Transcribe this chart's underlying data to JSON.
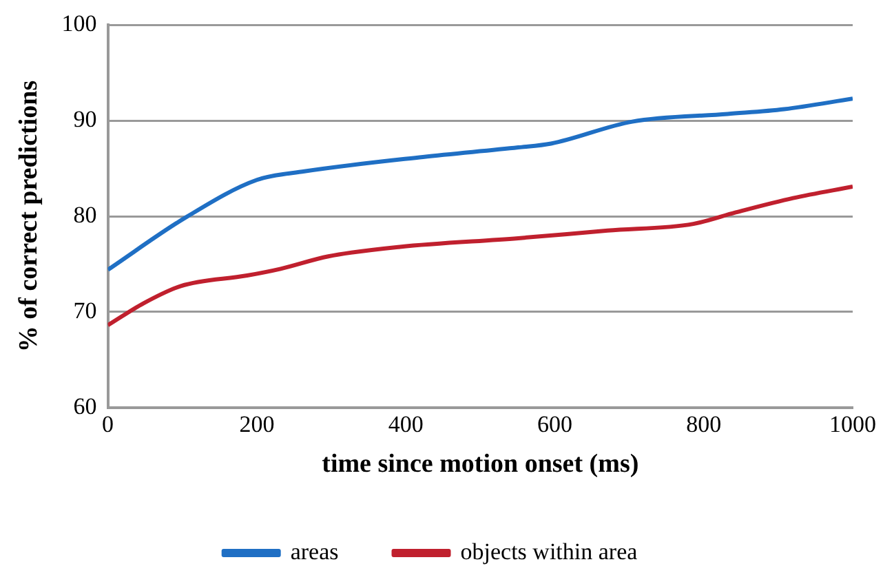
{
  "chart_data": {
    "type": "line",
    "xlabel": "time since motion onset (ms)",
    "ylabel": "% of correct predictions",
    "xlim": [
      0,
      1000
    ],
    "xticks": [
      0,
      200,
      400,
      600,
      800,
      1000
    ],
    "ylim": [
      60,
      100
    ],
    "yticks": [
      60,
      70,
      80,
      90,
      100
    ],
    "grid": "y",
    "legend": "bottom",
    "marker": "none",
    "series": [
      {
        "name": "areas",
        "color": "#1f6fc4",
        "x": [
          0,
          105,
          200,
          264,
          423,
          551,
          595,
          704,
          832,
          908,
          1000
        ],
        "values": [
          74.4,
          79.9,
          83.8,
          84.7,
          86.2,
          87.2,
          87.6,
          89.9,
          90.7,
          91.2,
          92.3
        ]
      },
      {
        "name": "objects within area",
        "color": "#c0202e",
        "x": [
          0,
          48,
          98,
          187,
          232,
          296,
          392,
          551,
          671,
          786,
          843,
          920,
          1000
        ],
        "values": [
          68.6,
          70.9,
          72.7,
          73.8,
          74.5,
          75.8,
          76.8,
          77.7,
          78.5,
          79.2,
          80.4,
          81.9,
          83.1
        ]
      }
    ]
  }
}
